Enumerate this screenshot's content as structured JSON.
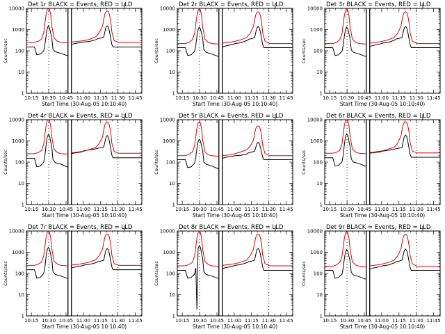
{
  "chart_data": {
    "type": "line",
    "panel_count": 9,
    "title_template": "Det {n}r BLACK = Events, RED = LLD",
    "detectors": [
      1,
      2,
      3,
      4,
      5,
      6,
      7,
      8,
      9
    ],
    "xlabel": "Start Time (30-Aug-05 10:10:40)",
    "ylabel": "Counts/sec",
    "y_scale": "log",
    "ylim": [
      1,
      10000
    ],
    "y_tick_labels": [
      "1",
      "10",
      "100",
      "1000",
      "10000"
    ],
    "x_unit": "minutes after 10:10:40",
    "xlim": [
      0,
      100
    ],
    "x_ticks": [
      4.33,
      19.33,
      34.33,
      49.33,
      64.33,
      79.33,
      94.33
    ],
    "x_tick_labels": [
      "10:15",
      "10:30",
      "10:45",
      "11:00",
      "11:15",
      "11:30",
      "11:45"
    ],
    "dashed_lines_at": [
      19.33,
      79.33
    ],
    "gap_start_minutes": 36.0,
    "gap_end_minutes": 39.0,
    "legend_stub": true,
    "series": [
      {
        "color": "#000000",
        "x": [
          0,
          7,
          9,
          12,
          15,
          16,
          17,
          18,
          19,
          20,
          22,
          23,
          25,
          30,
          35,
          36,
          39,
          42,
          48,
          50,
          55,
          60,
          62,
          65,
          67,
          68,
          69,
          70,
          71,
          72,
          74,
          75,
          80,
          85,
          90,
          95,
          100
        ],
        "detectors_y": [
          [
            150,
            150,
            65,
            70,
            100,
            200,
            500,
            1100,
            1500,
            1200,
            400,
            120,
            90,
            75,
            60,
            60,
            200,
            220,
            250,
            260,
            280,
            330,
            380,
            400,
            450,
            800,
            1300,
            1500,
            1300,
            800,
            200,
            150,
            150,
            150,
            150,
            150,
            150
          ],
          [
            140,
            140,
            60,
            65,
            95,
            180,
            480,
            1000,
            1300,
            1100,
            380,
            110,
            85,
            70,
            55,
            55,
            150,
            170,
            200,
            220,
            240,
            300,
            350,
            380,
            420,
            750,
            1200,
            1400,
            1200,
            750,
            190,
            140,
            140,
            140,
            140,
            140,
            140
          ],
          [
            140,
            140,
            60,
            65,
            95,
            180,
            480,
            1000,
            1300,
            1100,
            380,
            110,
            85,
            70,
            55,
            55,
            160,
            180,
            210,
            230,
            250,
            310,
            360,
            390,
            430,
            760,
            1200,
            1400,
            1200,
            760,
            190,
            140,
            140,
            140,
            140,
            140,
            140
          ],
          [
            150,
            150,
            60,
            65,
            100,
            200,
            600,
            1500,
            2000,
            1700,
            500,
            130,
            95,
            80,
            60,
            60,
            250,
            270,
            300,
            350,
            380,
            420,
            450,
            480,
            520,
            900,
            1500,
            1800,
            1500,
            900,
            220,
            160,
            160,
            160,
            160,
            160,
            160
          ],
          [
            130,
            130,
            55,
            60,
            90,
            170,
            450,
            900,
            1200,
            1000,
            350,
            100,
            80,
            65,
            50,
            50,
            150,
            170,
            190,
            200,
            210,
            240,
            280,
            300,
            330,
            500,
            750,
            850,
            750,
            500,
            170,
            130,
            130,
            130,
            130,
            130,
            130
          ],
          [
            160,
            160,
            65,
            70,
            105,
            210,
            650,
            1600,
            2100,
            1800,
            520,
            140,
            100,
            85,
            65,
            65,
            260,
            280,
            300,
            330,
            360,
            400,
            430,
            460,
            500,
            950,
            1600,
            1900,
            1600,
            950,
            230,
            170,
            170,
            170,
            170,
            170,
            170
          ],
          [
            150,
            150,
            60,
            65,
            100,
            200,
            600,
            1300,
            1700,
            1400,
            450,
            120,
            90,
            75,
            60,
            60,
            180,
            200,
            230,
            250,
            270,
            320,
            360,
            390,
            420,
            800,
            1300,
            1500,
            1300,
            800,
            210,
            150,
            150,
            150,
            150,
            150,
            150
          ],
          [
            140,
            140,
            60,
            65,
            95,
            180,
            2,
            1500,
            2000,
            1700,
            500,
            120,
            90,
            75,
            60,
            60,
            170,
            190,
            220,
            240,
            260,
            320,
            360,
            390,
            430,
            800,
            1300,
            1500,
            1300,
            800,
            200,
            140,
            140,
            140,
            140,
            140,
            140
          ],
          [
            140,
            140,
            60,
            65,
            95,
            180,
            480,
            1000,
            1300,
            1100,
            380,
            110,
            85,
            70,
            55,
            55,
            160,
            180,
            210,
            230,
            250,
            310,
            360,
            390,
            430,
            760,
            1200,
            1400,
            1200,
            760,
            190,
            140,
            140,
            140,
            140,
            140,
            140
          ]
        ]
      },
      {
        "color": "#e00000",
        "x": [
          0,
          7,
          10,
          13,
          15,
          16,
          17,
          18,
          19,
          20,
          21,
          22,
          24,
          27,
          30,
          35,
          36,
          39,
          45,
          50,
          55,
          60,
          63,
          66,
          67,
          68,
          69,
          70,
          71,
          72,
          73,
          74,
          76,
          80,
          85,
          90,
          95,
          100
        ],
        "detectors_y": [
          [
            250,
            250,
            280,
            350,
            700,
            2000,
            5000,
            9000,
            10000,
            9000,
            5000,
            1500,
            400,
            280,
            250,
            240,
            240,
            260,
            280,
            300,
            350,
            450,
            700,
            1500,
            3000,
            5500,
            7000,
            7500,
            7000,
            5000,
            2500,
            800,
            300,
            250,
            250,
            250,
            250,
            250
          ],
          [
            220,
            220,
            250,
            330,
            650,
            1800,
            4500,
            8000,
            9500,
            8500,
            4500,
            1300,
            350,
            250,
            220,
            210,
            210,
            230,
            250,
            280,
            330,
            420,
            650,
            1400,
            2800,
            5000,
            6500,
            7000,
            6500,
            4500,
            2200,
            700,
            280,
            220,
            220,
            220,
            220,
            220
          ],
          [
            220,
            220,
            250,
            330,
            650,
            1800,
            4500,
            8000,
            9500,
            8500,
            4500,
            1300,
            350,
            250,
            220,
            210,
            210,
            230,
            250,
            280,
            330,
            420,
            650,
            1400,
            2800,
            5000,
            6500,
            7000,
            6500,
            4500,
            2200,
            700,
            280,
            220,
            220,
            220,
            220,
            220
          ],
          [
            250,
            250,
            280,
            350,
            700,
            2000,
            5000,
            9000,
            10000,
            9000,
            5000,
            1500,
            400,
            280,
            250,
            240,
            240,
            270,
            300,
            330,
            400,
            480,
            750,
            1600,
            3200,
            5800,
            7200,
            7800,
            7200,
            5200,
            2600,
            800,
            320,
            260,
            260,
            260,
            260,
            260
          ],
          [
            200,
            200,
            230,
            300,
            600,
            1600,
            4000,
            7000,
            8000,
            7000,
            3800,
            1100,
            300,
            220,
            200,
            190,
            190,
            200,
            220,
            250,
            300,
            380,
            550,
            1100,
            2200,
            3800,
            4800,
            5000,
            4800,
            3500,
            1800,
            600,
            250,
            200,
            200,
            200,
            200,
            200
          ],
          [
            260,
            260,
            290,
            360,
            720,
            2100,
            5200,
            9200,
            10000,
            9200,
            5200,
            1600,
            420,
            290,
            260,
            250,
            250,
            280,
            310,
            340,
            410,
            490,
            760,
            1650,
            3300,
            6000,
            7400,
            8000,
            7400,
            5300,
            2700,
            820,
            330,
            270,
            270,
            270,
            270,
            270
          ],
          [
            240,
            240,
            270,
            340,
            680,
            1900,
            4800,
            8500,
            9800,
            8800,
            4800,
            1400,
            380,
            270,
            240,
            230,
            230,
            250,
            270,
            300,
            350,
            440,
            680,
            1450,
            2900,
            5200,
            6800,
            7200,
            6800,
            4800,
            2400,
            750,
            290,
            240,
            240,
            240,
            240,
            240
          ],
          [
            230,
            230,
            260,
            330,
            660,
            1850,
            4700,
            8300,
            9600,
            8600,
            4700,
            1350,
            360,
            260,
            230,
            220,
            220,
            240,
            260,
            290,
            340,
            430,
            670,
            1420,
            2850,
            5100,
            6700,
            7100,
            6700,
            4700,
            2350,
            730,
            285,
            230,
            230,
            230,
            230,
            230
          ],
          [
            220,
            220,
            250,
            330,
            650,
            1800,
            4500,
            8000,
            9500,
            8500,
            4500,
            1300,
            350,
            250,
            220,
            210,
            210,
            230,
            250,
            280,
            330,
            420,
            650,
            1400,
            2800,
            5000,
            6500,
            7000,
            6500,
            4500,
            2200,
            700,
            280,
            220,
            220,
            220,
            220,
            220
          ]
        ]
      }
    ]
  }
}
